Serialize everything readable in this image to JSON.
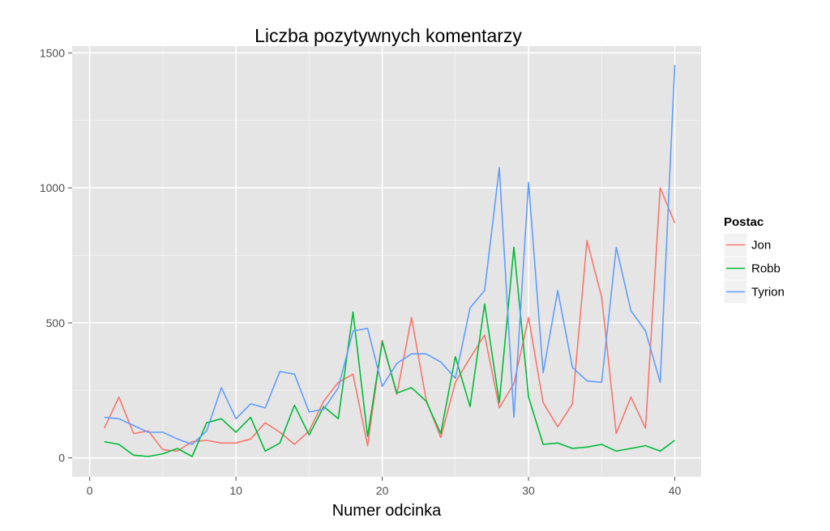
{
  "chart_data": {
    "type": "line",
    "title": "Liczba pozytywnych komentarzy",
    "xlabel": "Numer odcinka",
    "ylabel": "",
    "xlim": [
      -1.2,
      41.8
    ],
    "ylim": [
      -70,
      1525
    ],
    "xticks": [
      0,
      10,
      20,
      30,
      40
    ],
    "yticks": [
      0,
      500,
      1000,
      1500
    ],
    "xtick_labels": [
      "0",
      "10",
      "20",
      "30",
      "40"
    ],
    "ytick_labels": [
      "0",
      "500",
      "1000",
      "1500"
    ],
    "grid": true,
    "legend": {
      "title": "Postac",
      "position": "right"
    },
    "colors": {
      "panel": "#e5e5e5",
      "grid": "#ffffff"
    },
    "series": [
      {
        "name": "Jon",
        "color": "#f8766d",
        "x": [
          1,
          2,
          3,
          4,
          5,
          6,
          7,
          8,
          9,
          10,
          11,
          12,
          13,
          14,
          15,
          16,
          17,
          18,
          19,
          20,
          21,
          22,
          23,
          24,
          25,
          26,
          27,
          28,
          29,
          30,
          31,
          32,
          33,
          34,
          35,
          36,
          37,
          38,
          39,
          40
        ],
        "values": [
          110,
          225,
          90,
          100,
          30,
          25,
          60,
          65,
          55,
          55,
          70,
          130,
          95,
          50,
          100,
          210,
          280,
          310,
          45,
          435,
          235,
          520,
          215,
          75,
          280,
          370,
          455,
          185,
          275,
          520,
          205,
          115,
          200,
          805,
          595,
          90,
          225,
          110,
          1000,
          870
        ]
      },
      {
        "name": "Robb",
        "color": "#00ba38",
        "x": [
          1,
          2,
          3,
          4,
          5,
          6,
          7,
          8,
          9,
          10,
          11,
          12,
          13,
          14,
          15,
          16,
          17,
          18,
          19,
          20,
          21,
          22,
          23,
          24,
          25,
          26,
          27,
          28,
          29,
          30,
          31,
          32,
          33,
          34,
          35,
          36,
          37,
          38,
          39,
          40
        ],
        "values": [
          60,
          50,
          10,
          5,
          15,
          35,
          5,
          130,
          145,
          95,
          150,
          25,
          55,
          195,
          85,
          190,
          145,
          540,
          80,
          430,
          240,
          260,
          210,
          90,
          375,
          190,
          570,
          205,
          780,
          225,
          50,
          55,
          35,
          40,
          50,
          25,
          35,
          45,
          25,
          65
        ]
      },
      {
        "name": "Tyrion",
        "color": "#619cff",
        "x": [
          1,
          2,
          3,
          4,
          5,
          6,
          7,
          8,
          9,
          10,
          11,
          12,
          13,
          14,
          15,
          16,
          17,
          18,
          19,
          20,
          21,
          22,
          23,
          24,
          25,
          26,
          27,
          28,
          29,
          30,
          31,
          32,
          33,
          34,
          35,
          36,
          37,
          38,
          39,
          40
        ],
        "values": [
          150,
          145,
          120,
          95,
          95,
          70,
          50,
          100,
          260,
          145,
          200,
          185,
          320,
          310,
          170,
          180,
          260,
          470,
          480,
          265,
          350,
          385,
          385,
          355,
          295,
          555,
          620,
          1075,
          150,
          1020,
          315,
          620,
          335,
          285,
          280,
          780,
          545,
          470,
          280,
          1455
        ]
      }
    ]
  }
}
